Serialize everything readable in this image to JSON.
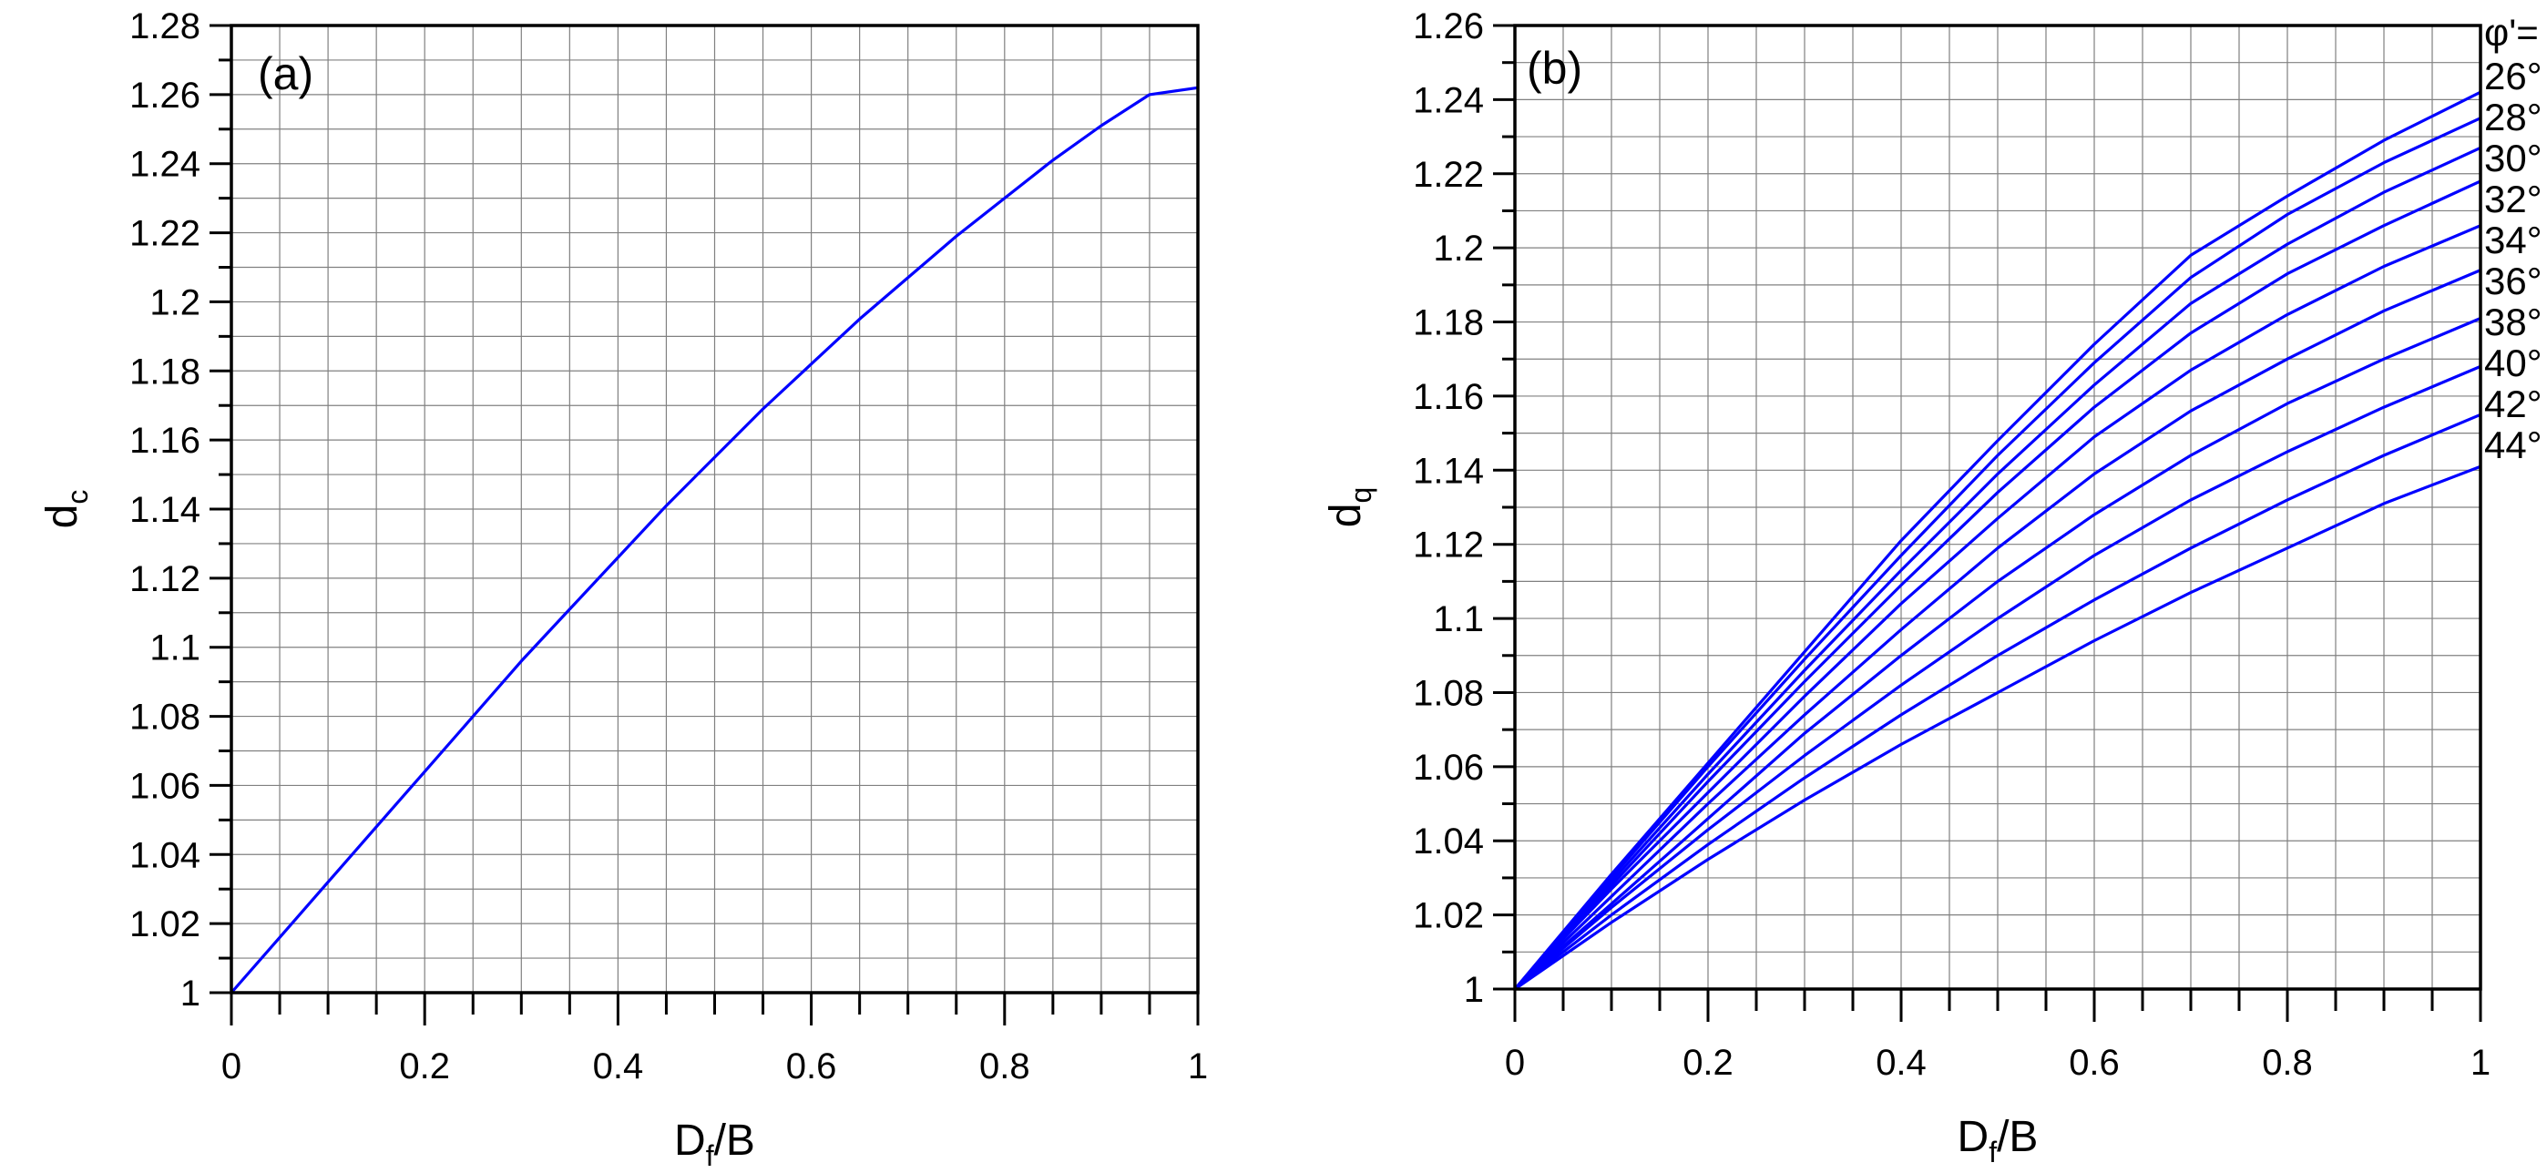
{
  "colors": {
    "curve": "#0000FF",
    "grid": "#808080",
    "axis": "#000000"
  },
  "chart_data": [
    {
      "type": "line",
      "panel_label": "(a)",
      "xlabel": {
        "main": "D",
        "sub": "f",
        "tail": "/B"
      },
      "ylabel": {
        "main": "d",
        "sub": "c"
      },
      "xlim": [
        0,
        1
      ],
      "ylim": [
        1,
        1.28
      ],
      "grid": true,
      "x_ticks": [
        0,
        0.2,
        0.4,
        0.6,
        0.8,
        1
      ],
      "x_tick_labels": [
        "0",
        "0.2",
        "0.4",
        "0.6",
        "0.8",
        "1"
      ],
      "y_ticks": [
        1,
        1.02,
        1.04,
        1.06,
        1.08,
        1.1,
        1.12,
        1.14,
        1.16,
        1.18,
        1.2,
        1.22,
        1.24,
        1.26,
        1.28
      ],
      "y_tick_labels": [
        "1",
        "1.02",
        "1.04",
        "1.06",
        "1.08",
        "1.1",
        "1.12",
        "1.14",
        "1.16",
        "1.18",
        "1.2",
        "1.22",
        "1.24",
        "1.26",
        "1.28"
      ],
      "series": [
        {
          "x": [
            0,
            0.05,
            0.1,
            0.15,
            0.2,
            0.25,
            0.3,
            0.35,
            0.4,
            0.45,
            0.5,
            0.55,
            0.6,
            0.65,
            0.7,
            0.75,
            0.8,
            0.85,
            0.9,
            0.95,
            1
          ],
          "values": [
            1,
            1.016,
            1.032,
            1.048,
            1.064,
            1.08,
            1.096,
            1.111,
            1.126,
            1.141,
            1.155,
            1.169,
            1.182,
            1.195,
            1.207,
            1.219,
            1.23,
            1.241,
            1.251,
            1.26,
            1.262
          ]
        }
      ]
    },
    {
      "type": "line",
      "panel_label": "(b)",
      "xlabel": {
        "main": "D",
        "sub": "f",
        "tail": "/B"
      },
      "ylabel": {
        "main": "d",
        "sub": "q"
      },
      "xlim": [
        0,
        1
      ],
      "ylim": [
        1,
        1.26
      ],
      "grid": true,
      "x_ticks": [
        0,
        0.2,
        0.4,
        0.6,
        0.8,
        1
      ],
      "x_tick_labels": [
        "0",
        "0.2",
        "0.4",
        "0.6",
        "0.8",
        "1"
      ],
      "y_ticks": [
        1,
        1.02,
        1.04,
        1.06,
        1.08,
        1.1,
        1.12,
        1.14,
        1.16,
        1.18,
        1.2,
        1.22,
        1.24,
        1.26
      ],
      "y_tick_labels": [
        "1",
        "1.02",
        "1.04",
        "1.06",
        "1.08",
        "1.1",
        "1.12",
        "1.14",
        "1.16",
        "1.18",
        "1.2",
        "1.22",
        "1.24",
        "1.26"
      ],
      "legend_title": "φ'=",
      "series": [
        {
          "name": "26°",
          "x": [
            0,
            0.1,
            0.2,
            0.3,
            0.4,
            0.5,
            0.6,
            0.7,
            0.8,
            0.9,
            1
          ],
          "values": [
            1,
            1.031,
            1.061,
            1.091,
            1.121,
            1.148,
            1.174,
            1.198,
            1.214,
            1.229,
            1.242
          ]
        },
        {
          "name": "28°",
          "x": [
            0,
            0.1,
            0.2,
            0.3,
            0.4,
            0.5,
            0.6,
            0.7,
            0.8,
            0.9,
            1
          ],
          "values": [
            1,
            1.03,
            1.06,
            1.089,
            1.117,
            1.144,
            1.169,
            1.192,
            1.209,
            1.223,
            1.235
          ]
        },
        {
          "name": "30°",
          "x": [
            0,
            0.1,
            0.2,
            0.3,
            0.4,
            0.5,
            0.6,
            0.7,
            0.8,
            0.9,
            1
          ],
          "values": [
            1,
            1.029,
            1.058,
            1.086,
            1.113,
            1.139,
            1.163,
            1.185,
            1.201,
            1.215,
            1.227
          ]
        },
        {
          "name": "32°",
          "x": [
            0,
            0.1,
            0.2,
            0.3,
            0.4,
            0.5,
            0.6,
            0.7,
            0.8,
            0.9,
            1
          ],
          "values": [
            1,
            1.028,
            1.056,
            1.083,
            1.109,
            1.134,
            1.157,
            1.177,
            1.193,
            1.206,
            1.218
          ]
        },
        {
          "name": "34°",
          "x": [
            0,
            0.1,
            0.2,
            0.3,
            0.4,
            0.5,
            0.6,
            0.7,
            0.8,
            0.9,
            1
          ],
          "values": [
            1,
            1.027,
            1.053,
            1.079,
            1.104,
            1.127,
            1.149,
            1.167,
            1.182,
            1.195,
            1.206
          ]
        },
        {
          "name": "36°",
          "x": [
            0,
            0.1,
            0.2,
            0.3,
            0.4,
            0.5,
            0.6,
            0.7,
            0.8,
            0.9,
            1
          ],
          "values": [
            1,
            1.025,
            1.05,
            1.074,
            1.097,
            1.119,
            1.139,
            1.156,
            1.17,
            1.183,
            1.194
          ]
        },
        {
          "name": "38°",
          "x": [
            0,
            0.1,
            0.2,
            0.3,
            0.4,
            0.5,
            0.6,
            0.7,
            0.8,
            0.9,
            1
          ],
          "values": [
            1,
            1.023,
            1.046,
            1.069,
            1.09,
            1.11,
            1.128,
            1.144,
            1.158,
            1.17,
            1.181
          ]
        },
        {
          "name": "40°",
          "x": [
            0,
            0.1,
            0.2,
            0.3,
            0.4,
            0.5,
            0.6,
            0.7,
            0.8,
            0.9,
            1
          ],
          "values": [
            1,
            1.022,
            1.043,
            1.063,
            1.082,
            1.1,
            1.117,
            1.132,
            1.145,
            1.157,
            1.168
          ]
        },
        {
          "name": "42°",
          "x": [
            0,
            0.1,
            0.2,
            0.3,
            0.4,
            0.5,
            0.6,
            0.7,
            0.8,
            0.9,
            1
          ],
          "values": [
            1,
            1.02,
            1.039,
            1.057,
            1.074,
            1.09,
            1.105,
            1.119,
            1.132,
            1.144,
            1.155
          ]
        },
        {
          "name": "44°",
          "x": [
            0,
            0.1,
            0.2,
            0.3,
            0.4,
            0.5,
            0.6,
            0.7,
            0.8,
            0.9,
            1
          ],
          "values": [
            1,
            1.018,
            1.035,
            1.051,
            1.066,
            1.08,
            1.094,
            1.107,
            1.119,
            1.131,
            1.141
          ]
        }
      ]
    }
  ]
}
